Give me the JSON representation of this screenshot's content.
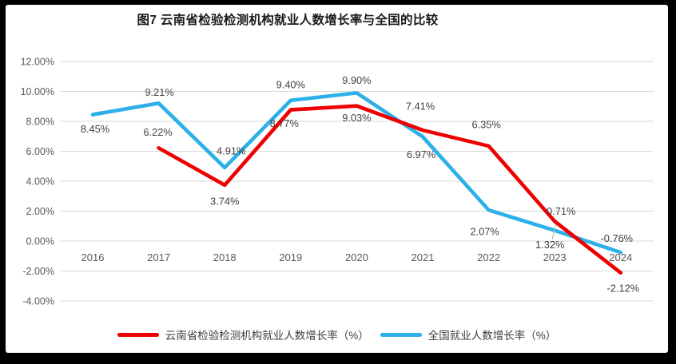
{
  "window": {
    "background": "#000000",
    "panel": "#FFFFFF"
  },
  "chart_data": {
    "type": "line",
    "title": "图7  云南省检验检测机构就业人数增长率与全国的比较",
    "categories": [
      "2016",
      "2017",
      "2018",
      "2019",
      "2020",
      "2021",
      "2022",
      "2023",
      "2024"
    ],
    "series": [
      {
        "name": "云南省检验检测机构就业人数增长率（%）",
        "color": "#EE0000",
        "values": [
          null,
          6.22,
          3.74,
          8.77,
          9.03,
          7.41,
          6.35,
          1.32,
          -2.12
        ],
        "labels": [
          "",
          "6.22%",
          "3.74%",
          "8.77%",
          "9.03%",
          "7.41%",
          "6.35%",
          "1.32%",
          "-2.12%"
        ]
      },
      {
        "name": "全国就业人数增长率（%）",
        "color": "#2BB0E8",
        "values": [
          8.45,
          9.21,
          4.91,
          9.4,
          9.9,
          6.97,
          2.07,
          0.71,
          -0.76
        ],
        "labels": [
          "8.45%",
          "9.21%",
          "4.91%",
          "9.40%",
          "9.90%",
          "6.97%",
          "2.07%",
          "0.71%",
          "-0.76%"
        ]
      }
    ],
    "y_axis": {
      "ticks": [
        "12.00%",
        "10.00%",
        "8.00%",
        "6.00%",
        "4.00%",
        "2.00%",
        "0.00%",
        "-2.00%",
        "-4.00%"
      ],
      "tick_values": [
        12,
        10,
        8,
        6,
        4,
        2,
        0,
        -2,
        -4
      ],
      "min": -4,
      "max": 12,
      "grid": true
    },
    "legend_position": "bottom"
  },
  "colors": {
    "gridline": "#D9D9D9",
    "axis_text": "#595959",
    "label_text": "#3F3F3F",
    "leader_line": "#BFBFBF"
  }
}
